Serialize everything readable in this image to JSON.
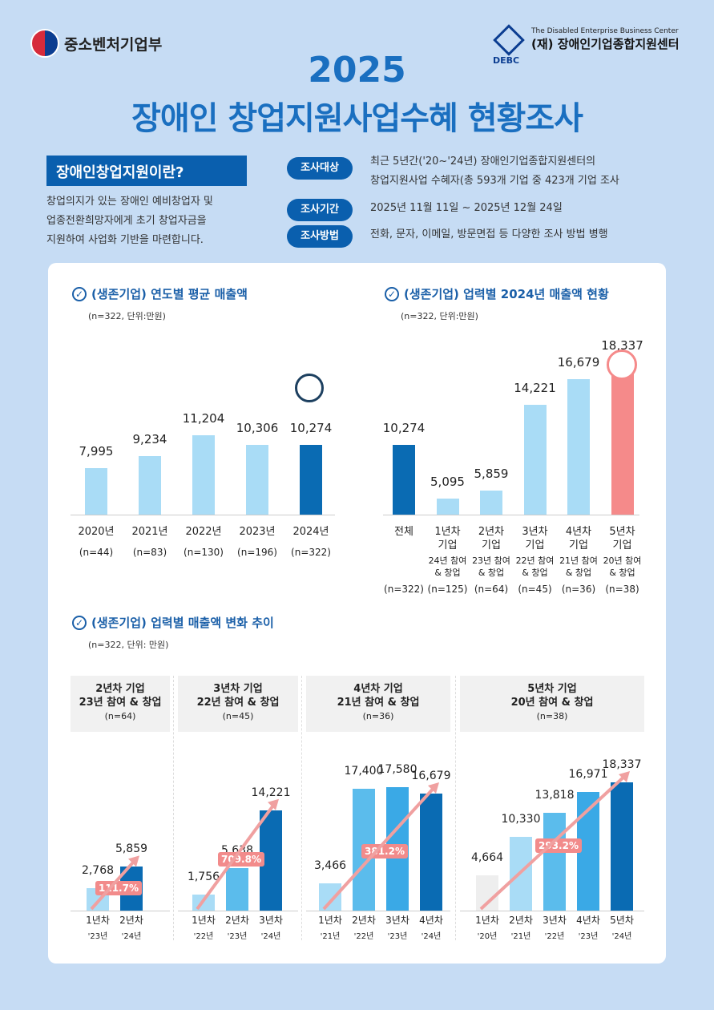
{
  "header": {
    "ministry": "중소벤처기업부",
    "center_en": "The Disabled Enterprise Business Center",
    "center_ko": "(재) 장애인기업종합지원센터",
    "center_abbr": "DEBC",
    "year": "2025",
    "title": "장애인 창업지원사업수혜 현황조사"
  },
  "intro": {
    "heading": "장애인창업지원이란?",
    "body": "창업의지가 있는 장애인 예비창업자 및\n업종전환희망자에게 초기 창업자금을\n지원하여 사업화 기반을 마련합니다."
  },
  "survey": [
    {
      "label": "조사대상",
      "text": "최근 5년간('20~'24년) 장애인기업종합지원센터의\n창업지원사업 수혜자(총 593개 기업 중 423개 기업 조사"
    },
    {
      "label": "조사기간",
      "text": "2025년 11월 11일 ~ 2025년 12월 24일"
    },
    {
      "label": "조사방법",
      "text": "전화, 문자, 이메일, 방문면접 등 다양한 조사 방법 병행"
    }
  ],
  "colors": {
    "light": "#a9dcf6",
    "mid": "#5bbcec",
    "dark": "#0a6bb3",
    "pink": "#f58a8a"
  },
  "chart_data": [
    {
      "type": "bar",
      "title": "(생존기업) 연도별 평균 매출액",
      "note": "(n=322, 단위:만원)",
      "categories": [
        "2020년",
        "2021년",
        "2022년",
        "2023년",
        "2024년"
      ],
      "sub": [
        "(n=44)",
        "(n=83)",
        "(n=130)",
        "(n=196)",
        "(n=322)"
      ],
      "values": [
        7995,
        9234,
        11204,
        10306,
        10274
      ],
      "value_labels": [
        "7,995",
        "9,234",
        "11,204",
        "10,306",
        "10,274"
      ]
    },
    {
      "type": "bar",
      "title": "(생존기업) 업력별 2024년 매출액 현황",
      "note": "(n=322, 단위:만원)",
      "categories": [
        "전체",
        "1년차\n기업",
        "2년차\n기업",
        "3년차\n기업",
        "4년차\n기업",
        "5년차\n기업"
      ],
      "sub": [
        "",
        "24년 참여\n& 창업",
        "23년 참여\n& 창업",
        "22년 참여\n& 창업",
        "21년 참여\n& 창업",
        "20년 참여\n& 창업"
      ],
      "n": [
        "(n=322)",
        "(n=125)",
        "(n=64)",
        "(n=45)",
        "(n=36)",
        "(n=38)"
      ],
      "values": [
        10274,
        5095,
        5859,
        14221,
        16679,
        18337
      ],
      "value_labels": [
        "10,274",
        "5,095",
        "5,859",
        "14,221",
        "16,679",
        "18,337"
      ]
    },
    {
      "type": "bar",
      "title": "(생존기업) 업력별 매출액 변화 추이",
      "note": "(n=322, 단위: 만원)",
      "panels": [
        {
          "head": "2년차 기업\n23년 참여 & 창업",
          "n": "(n=64)",
          "categories": [
            "1년차",
            "2년차"
          ],
          "years": [
            "'23년",
            "'24년"
          ],
          "values": [
            2768,
            5859
          ],
          "value_labels": [
            "2,768",
            "5,859"
          ],
          "growth": "111.7%"
        },
        {
          "head": "3년차 기업\n22년 참여 & 창업",
          "n": "(n=45)",
          "categories": [
            "1년차",
            "2년차",
            "3년차"
          ],
          "years": [
            "'22년",
            "'23년",
            "'24년"
          ],
          "values": [
            1756,
            5638,
            14221
          ],
          "value_labels": [
            "1,756",
            "5,638",
            "14,221"
          ],
          "growth": "709.8%"
        },
        {
          "head": "4년차 기업\n21년 참여 & 창업",
          "n": "(n=36)",
          "categories": [
            "1년차",
            "2년차",
            "3년차",
            "4년차"
          ],
          "years": [
            "'21년",
            "'22년",
            "'23년",
            "'24년"
          ],
          "values": [
            3466,
            17400,
            17580,
            16679
          ],
          "value_labels": [
            "3,466",
            "17,400",
            "17,580",
            "16,679"
          ],
          "growth": "381.2%"
        },
        {
          "head": "5년차 기업\n20년 참여 & 창업",
          "n": "(n=38)",
          "categories": [
            "1년차",
            "2년차",
            "3년차",
            "4년차",
            "5년차"
          ],
          "years": [
            "'20년",
            "'21년",
            "'22년",
            "'23년",
            "'24년"
          ],
          "values": [
            4664,
            10330,
            13818,
            16971,
            18337
          ],
          "value_labels": [
            "4,664",
            "10,330",
            "13,818",
            "16,971",
            "18,337"
          ],
          "growth": "293.2%"
        }
      ]
    }
  ]
}
